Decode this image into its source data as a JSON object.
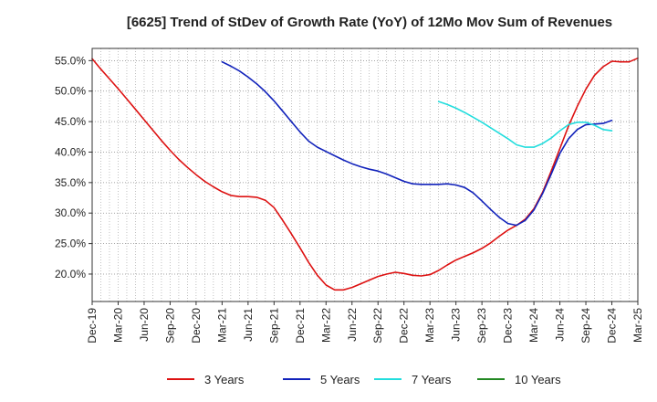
{
  "chart_data": {
    "type": "line",
    "title": "[6625]  Trend of StDev of Growth Rate (YoY) of 12Mo Mov Sum of Revenues",
    "xlabel": "",
    "ylabel": "",
    "ylim": [
      15.5,
      57.0
    ],
    "yticks": [
      20.0,
      25.0,
      30.0,
      35.0,
      40.0,
      45.0,
      50.0,
      55.0
    ],
    "ytick_labels": [
      "20.0%",
      "25.0%",
      "30.0%",
      "35.0%",
      "40.0%",
      "45.0%",
      "50.0%",
      "55.0%"
    ],
    "xticks": [
      "Dec-19",
      "Mar-20",
      "Jun-20",
      "Sep-20",
      "Dec-20",
      "Mar-21",
      "Jun-21",
      "Sep-21",
      "Dec-21",
      "Mar-22",
      "Jun-22",
      "Sep-22",
      "Dec-22",
      "Mar-23",
      "Jun-23",
      "Sep-23",
      "Dec-23",
      "Mar-24",
      "Jun-24",
      "Sep-24",
      "Dec-24",
      "Mar-25"
    ],
    "grid": true,
    "legend_position": "bottom",
    "series": [
      {
        "name": "3 Years",
        "color": "#dd1111",
        "points": [
          [
            0,
            55.3
          ],
          [
            1,
            53.6
          ],
          [
            2,
            52.0
          ],
          [
            3,
            50.4
          ],
          [
            4,
            48.7
          ],
          [
            5,
            47.0
          ],
          [
            6,
            45.3
          ],
          [
            7,
            43.6
          ],
          [
            8,
            41.9
          ],
          [
            9,
            40.3
          ],
          [
            10,
            38.8
          ],
          [
            11,
            37.5
          ],
          [
            12,
            36.3
          ],
          [
            13,
            35.2
          ],
          [
            14,
            34.3
          ],
          [
            15,
            33.5
          ],
          [
            16,
            32.9
          ],
          [
            17,
            32.7
          ],
          [
            18,
            32.7
          ],
          [
            19,
            32.6
          ],
          [
            20,
            32.1
          ],
          [
            21,
            30.9
          ],
          [
            22,
            28.8
          ],
          [
            23,
            26.6
          ],
          [
            24,
            24.3
          ],
          [
            25,
            21.9
          ],
          [
            26,
            19.8
          ],
          [
            27,
            18.2
          ],
          [
            28,
            17.4
          ],
          [
            29,
            17.4
          ],
          [
            30,
            17.8
          ],
          [
            31,
            18.4
          ],
          [
            32,
            19.0
          ],
          [
            33,
            19.6
          ],
          [
            34,
            20.0
          ],
          [
            35,
            20.3
          ],
          [
            36,
            20.1
          ],
          [
            37,
            19.8
          ],
          [
            38,
            19.7
          ],
          [
            39,
            19.9
          ],
          [
            40,
            20.6
          ],
          [
            41,
            21.5
          ],
          [
            42,
            22.3
          ],
          [
            43,
            22.9
          ],
          [
            44,
            23.5
          ],
          [
            45,
            24.2
          ],
          [
            46,
            25.1
          ],
          [
            47,
            26.2
          ],
          [
            48,
            27.2
          ],
          [
            49,
            28.0
          ],
          [
            50,
            29.0
          ],
          [
            51,
            30.7
          ],
          [
            52,
            33.4
          ],
          [
            53,
            36.9
          ],
          [
            54,
            40.6
          ],
          [
            55,
            44.3
          ],
          [
            56,
            47.5
          ],
          [
            57,
            50.3
          ],
          [
            58,
            52.6
          ],
          [
            59,
            54.0
          ],
          [
            60,
            54.9
          ],
          [
            61,
            54.8
          ],
          [
            62,
            54.8
          ],
          [
            63,
            55.4
          ]
        ]
      },
      {
        "name": "5 Years",
        "color": "#1122bb",
        "points": [
          [
            15,
            54.8
          ],
          [
            16,
            54.1
          ],
          [
            17,
            53.3
          ],
          [
            18,
            52.3
          ],
          [
            19,
            51.2
          ],
          [
            20,
            49.9
          ],
          [
            21,
            48.4
          ],
          [
            22,
            46.7
          ],
          [
            23,
            45.0
          ],
          [
            24,
            43.3
          ],
          [
            25,
            41.8
          ],
          [
            26,
            40.8
          ],
          [
            27,
            40.1
          ],
          [
            28,
            39.4
          ],
          [
            29,
            38.7
          ],
          [
            30,
            38.1
          ],
          [
            31,
            37.6
          ],
          [
            32,
            37.2
          ],
          [
            33,
            36.9
          ],
          [
            34,
            36.4
          ],
          [
            35,
            35.8
          ],
          [
            36,
            35.2
          ],
          [
            37,
            34.8
          ],
          [
            38,
            34.7
          ],
          [
            39,
            34.7
          ],
          [
            40,
            34.7
          ],
          [
            41,
            34.8
          ],
          [
            42,
            34.6
          ],
          [
            43,
            34.2
          ],
          [
            44,
            33.3
          ],
          [
            45,
            32.0
          ],
          [
            46,
            30.6
          ],
          [
            47,
            29.3
          ],
          [
            48,
            28.3
          ],
          [
            49,
            28.0
          ],
          [
            50,
            28.8
          ],
          [
            51,
            30.5
          ],
          [
            52,
            33.2
          ],
          [
            53,
            36.4
          ],
          [
            54,
            39.8
          ],
          [
            55,
            42.2
          ],
          [
            56,
            43.7
          ],
          [
            57,
            44.5
          ],
          [
            58,
            44.6
          ],
          [
            59,
            44.7
          ],
          [
            60,
            45.2
          ]
        ]
      },
      {
        "name": "7 Years",
        "color": "#22dddd",
        "points": [
          [
            40,
            48.3
          ],
          [
            41,
            47.8
          ],
          [
            42,
            47.2
          ],
          [
            43,
            46.5
          ],
          [
            44,
            45.7
          ],
          [
            45,
            44.9
          ],
          [
            46,
            44.0
          ],
          [
            47,
            43.1
          ],
          [
            48,
            42.2
          ],
          [
            49,
            41.2
          ],
          [
            50,
            40.8
          ],
          [
            51,
            40.8
          ],
          [
            52,
            41.4
          ],
          [
            53,
            42.3
          ],
          [
            54,
            43.5
          ],
          [
            55,
            44.5
          ],
          [
            56,
            44.9
          ],
          [
            57,
            44.9
          ],
          [
            58,
            44.4
          ],
          [
            59,
            43.7
          ],
          [
            60,
            43.5
          ]
        ]
      },
      {
        "name": "10 Years",
        "color": "#228822",
        "points": []
      }
    ]
  }
}
